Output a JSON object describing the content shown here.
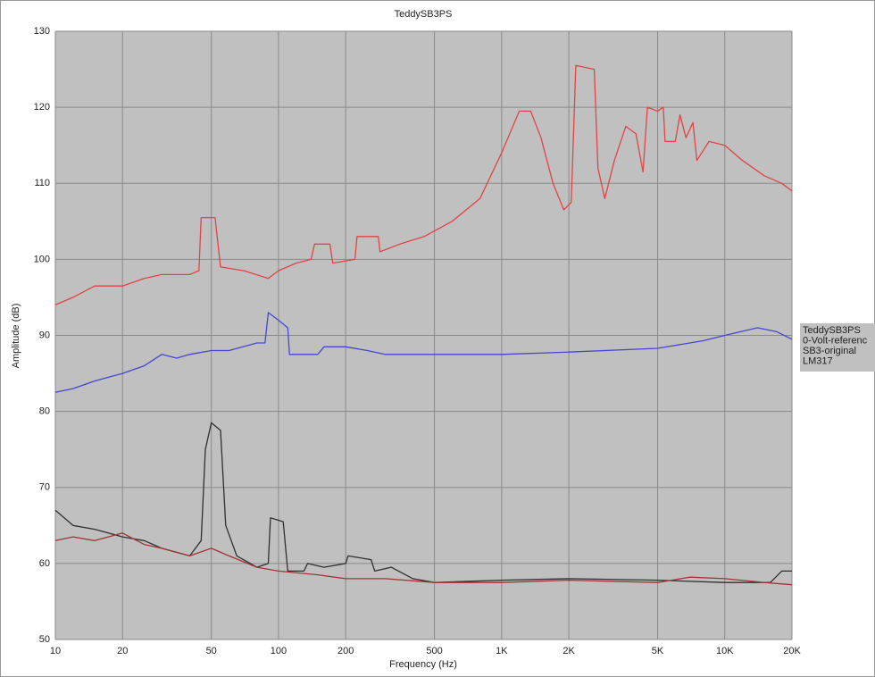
{
  "chart_data": {
    "type": "line",
    "title": "TeddySB3PS",
    "x_label": "Frequency (Hz)",
    "y_label": "Amplitude (dB)",
    "xscale": "log",
    "grid": true,
    "legend": "right",
    "xlim": [
      10,
      20000
    ],
    "ylim": [
      50,
      130
    ],
    "xticks": [
      10,
      20,
      50,
      100,
      200,
      500,
      {
        "value": 1000,
        "label": "1K"
      },
      {
        "value": 2000,
        "label": "2K"
      },
      {
        "value": 5000,
        "label": "5K"
      },
      {
        "value": 10000,
        "label": "10K"
      },
      {
        "value": 20000,
        "label": "20K"
      }
    ],
    "yticks": [
      50,
      60,
      70,
      80,
      90,
      100,
      110,
      120,
      130
    ],
    "series": [
      {
        "name": "TeddySB3PS",
        "color": "#e04545",
        "x": [
          10,
          12,
          15,
          20,
          25,
          30,
          40,
          44,
          45,
          52,
          55,
          70,
          90,
          100,
          120,
          140,
          145,
          170,
          175,
          220,
          225,
          280,
          285,
          350,
          450,
          600,
          800,
          1000,
          1200,
          1350,
          1500,
          1700,
          1900,
          2050,
          2150,
          2600,
          2700,
          2900,
          3200,
          3600,
          4000,
          4300,
          4500,
          5000,
          5300,
          5400,
          6000,
          6300,
          6700,
          7200,
          7500,
          8500,
          10000,
          12000,
          15000,
          18000,
          20000
        ],
        "values": [
          94,
          95,
          96.5,
          96.5,
          97.5,
          98,
          98,
          98.5,
          105.5,
          105.5,
          99,
          98.5,
          97.5,
          98.5,
          99.5,
          100,
          102,
          102,
          99.5,
          100,
          103,
          103,
          101,
          102,
          103,
          105,
          108,
          114,
          119.5,
          119.5,
          116,
          110,
          106.5,
          107.5,
          125.5,
          125,
          112,
          108,
          113,
          117.5,
          116.5,
          111.5,
          120,
          119.5,
          120,
          115.5,
          115.5,
          119,
          116,
          118,
          113,
          115.5,
          115,
          113,
          111,
          110,
          109
        ]
      },
      {
        "name": "0-Volt-referenc",
        "color": "#4646d2",
        "x": [
          10,
          12,
          15,
          20,
          25,
          30,
          35,
          40,
          50,
          60,
          80,
          87,
          90,
          100,
          110,
          112,
          150,
          160,
          200,
          250,
          300,
          400,
          600,
          1000,
          2000,
          5000,
          8000,
          10000,
          14000,
          17000,
          20000
        ],
        "values": [
          82.5,
          83,
          84,
          85,
          86,
          87.5,
          87,
          87.5,
          88,
          88,
          89,
          89,
          93,
          92,
          91,
          87.5,
          87.5,
          88.5,
          88.5,
          88,
          87.5,
          87.5,
          87.5,
          87.5,
          87.8,
          88.3,
          89.3,
          90,
          91,
          90.5,
          89.5
        ]
      },
      {
        "name": "SB3-original",
        "color": "#303030",
        "x": [
          10,
          12,
          15,
          20,
          25,
          30,
          40,
          45,
          47,
          50,
          55,
          58,
          65,
          80,
          90,
          92,
          105,
          110,
          130,
          135,
          160,
          200,
          205,
          260,
          270,
          320,
          400,
          500,
          1000,
          2000,
          5000,
          10000,
          16000,
          18000,
          20000
        ],
        "values": [
          67,
          65,
          64.5,
          63.5,
          63,
          62,
          61,
          63,
          75,
          78.5,
          77.5,
          65,
          61,
          59.5,
          60,
          66,
          65.5,
          59,
          59,
          60,
          59.5,
          60,
          61,
          60.5,
          59,
          59.5,
          58,
          57.5,
          57.8,
          58,
          57.8,
          57.5,
          57.5,
          59,
          59
        ]
      },
      {
        "name": "LM317",
        "color": "#a03535",
        "x": [
          10,
          12,
          15,
          20,
          25,
          30,
          40,
          50,
          60,
          80,
          100,
          150,
          200,
          300,
          500,
          1000,
          2000,
          5000,
          7000,
          10000,
          15000,
          20000
        ],
        "values": [
          63,
          63.5,
          63,
          64,
          62.5,
          62,
          61,
          62,
          61,
          59.5,
          59,
          58.5,
          58,
          58,
          57.5,
          57.5,
          57.8,
          57.5,
          58.2,
          58,
          57.5,
          57.2
        ]
      }
    ]
  }
}
